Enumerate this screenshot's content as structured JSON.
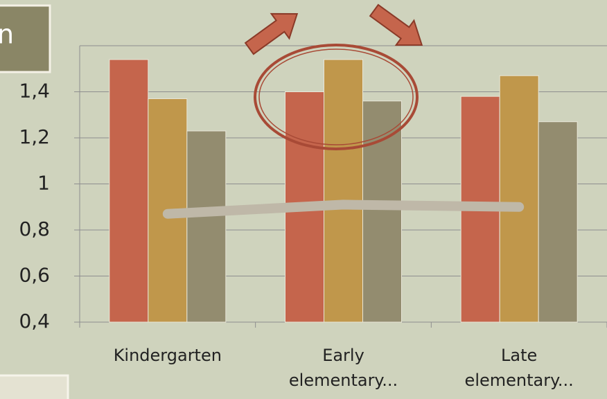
{
  "box_text": "n",
  "chart_data": {
    "type": "bar",
    "categories": [
      "Kindergarten",
      "Early elementary...",
      "Late elementary..."
    ],
    "series": [
      {
        "color": "#c5654c",
        "values": [
          1.54,
          1.4,
          1.38
        ]
      },
      {
        "color": "#c0974b",
        "values": [
          1.37,
          1.54,
          1.47
        ]
      },
      {
        "color": "#938c6f",
        "values": [
          1.23,
          1.36,
          1.27
        ]
      },
      {
        "type": "line",
        "color": "#bfb8a8",
        "values": [
          0.87,
          0.91,
          0.9
        ]
      }
    ],
    "ylim": [
      0.4,
      1.6
    ],
    "yticks": [
      {
        "value": 0.4,
        "label": "0,4"
      },
      {
        "value": 0.6,
        "label": "0,6"
      },
      {
        "value": 0.8,
        "label": "0,8"
      },
      1,
      {
        "value": 1.2,
        "label": "1,2"
      },
      {
        "value": 1.4,
        "label": "1,4"
      }
    ],
    "grid": true
  }
}
